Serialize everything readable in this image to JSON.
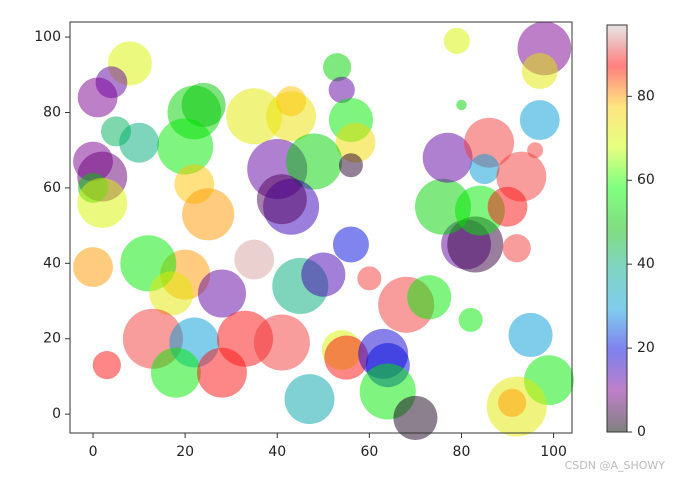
{
  "chart_data": {
    "type": "scatter",
    "x": [
      98,
      79,
      97,
      8,
      4,
      1,
      22,
      24,
      35,
      43,
      43,
      53,
      54,
      56,
      57,
      20,
      10,
      5,
      0,
      2,
      0,
      2,
      40,
      48,
      43,
      41,
      56,
      22,
      25,
      20,
      12,
      0,
      17,
      28,
      35,
      45,
      50,
      56,
      60,
      68,
      73,
      82,
      81,
      83,
      76,
      84,
      77,
      86,
      85,
      93,
      90,
      97,
      92,
      95,
      99,
      92,
      91,
      13,
      22,
      18,
      28,
      33,
      41,
      47,
      54,
      55,
      63,
      64,
      64,
      70,
      3,
      80,
      96
    ],
    "y": [
      97,
      99,
      91,
      93,
      88,
      84,
      80,
      82,
      79,
      79,
      83,
      92,
      86,
      78,
      72,
      71,
      72,
      75,
      67,
      63,
      60,
      56,
      65,
      67,
      55,
      57,
      66,
      61,
      53,
      37,
      40,
      39,
      32,
      32,
      41,
      34,
      37,
      45,
      36,
      29,
      31,
      25,
      45,
      45,
      55,
      54,
      68,
      72,
      65,
      63,
      55,
      78,
      44,
      21,
      9,
      2,
      3,
      20,
      19,
      11,
      11,
      20,
      19,
      4,
      17,
      15,
      16,
      13,
      6,
      -1,
      13,
      82,
      70
    ],
    "sizes": [
      800,
      190,
      360,
      540,
      280,
      440,
      800,
      540,
      870,
      690,
      250,
      220,
      190,
      540,
      440,
      870,
      440,
      250,
      440,
      690,
      250,
      690,
      1000,
      870,
      870,
      690,
      160,
      440,
      750,
      690,
      870,
      440,
      540,
      640,
      440,
      870,
      540,
      360,
      160,
      870,
      540,
      160,
      690,
      870,
      870,
      690,
      690,
      690,
      250,
      690,
      440,
      440,
      220,
      540,
      690,
      1000,
      220,
      1000,
      690,
      690,
      690,
      870,
      870,
      690,
      440,
      540,
      690,
      540,
      870,
      540,
      220,
      30,
      70
    ],
    "c": [
      10,
      70,
      72,
      70,
      12,
      10,
      52,
      50,
      72,
      74,
      78,
      52,
      12,
      55,
      75,
      55,
      40,
      42,
      10,
      8,
      50,
      70,
      12,
      52,
      15,
      6,
      3,
      78,
      80,
      80,
      55,
      80,
      72,
      12,
      95,
      40,
      14,
      20,
      90,
      90,
      55,
      55,
      12,
      4,
      52,
      55,
      12,
      90,
      30,
      90,
      88,
      30,
      90,
      30,
      55,
      72,
      80,
      90,
      30,
      55,
      88,
      88,
      90,
      35,
      70,
      88,
      18,
      20,
      55,
      2,
      88,
      52,
      90
    ],
    "colormap": [
      "#000000",
      "#7d0090",
      "#0000dd",
      "#0099dd",
      "#00aa88",
      "#00bb00",
      "#00ff00",
      "#ccff00",
      "#ffcc00",
      "#ff0000",
      "#cccccc"
    ],
    "alpha": 0.5,
    "xlim": [
      -5,
      104
    ],
    "ylim": [
      -5,
      104
    ],
    "xticks": [
      0,
      20,
      40,
      60,
      80,
      100
    ],
    "yticks": [
      0,
      20,
      40,
      60,
      80,
      100
    ],
    "clim": [
      0,
      97
    ],
    "cticks": [
      0,
      20,
      40,
      60,
      80
    ],
    "watermark": "CSDN @A_SHOWY"
  }
}
